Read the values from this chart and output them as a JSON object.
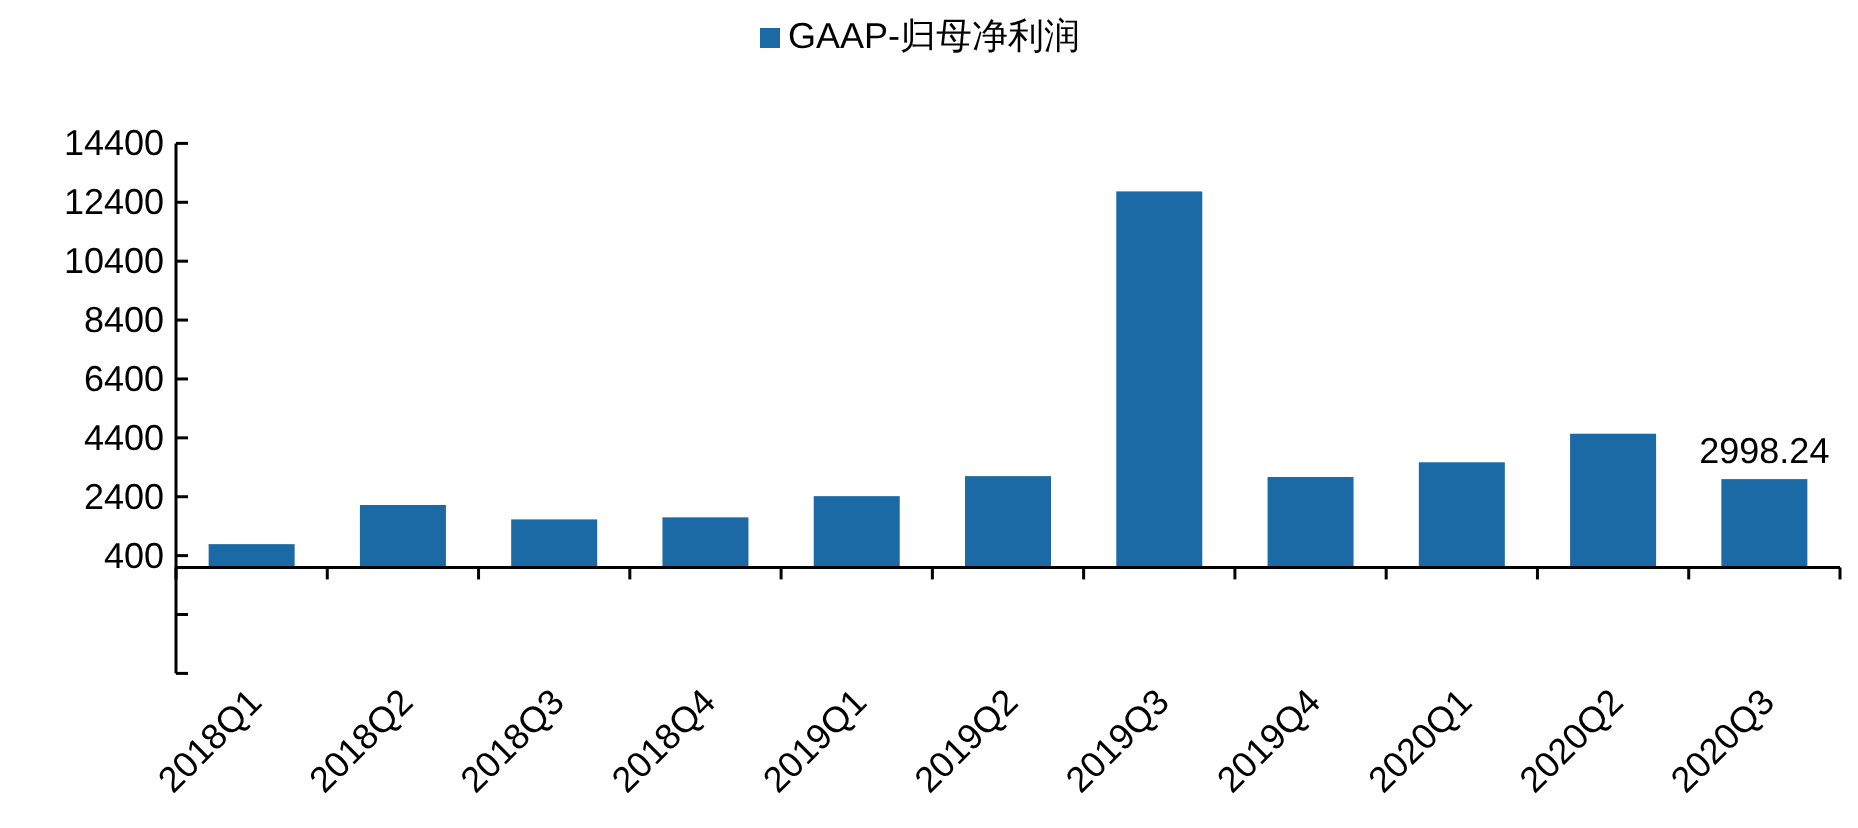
{
  "chart_data": {
    "type": "bar",
    "categories": [
      "2018Q1",
      "2018Q2",
      "2018Q3",
      "2018Q4",
      "2019Q1",
      "2019Q2",
      "2019Q3",
      "2019Q4",
      "2020Q1",
      "2020Q2",
      "2020Q3"
    ],
    "series": [
      {
        "name": "GAAP-归母净利润",
        "color": "#1b6aa5",
        "values": [
          790,
          2120,
          1630,
          1700,
          2420,
          3100,
          12770,
          3070,
          3570,
          4540,
          2998.24
        ],
        "value_labels": [
          null,
          null,
          null,
          null,
          null,
          null,
          null,
          null,
          null,
          null,
          "2998.24"
        ]
      }
    ],
    "ylim": [
      -3600,
      14400
    ],
    "yticks": [
      {
        "value": -3600,
        "label": null
      },
      {
        "value": -1600,
        "label": null
      },
      400,
      2400,
      4400,
      6400,
      8400,
      10400,
      12400,
      14400
    ],
    "legend": "top",
    "grid": false
  }
}
